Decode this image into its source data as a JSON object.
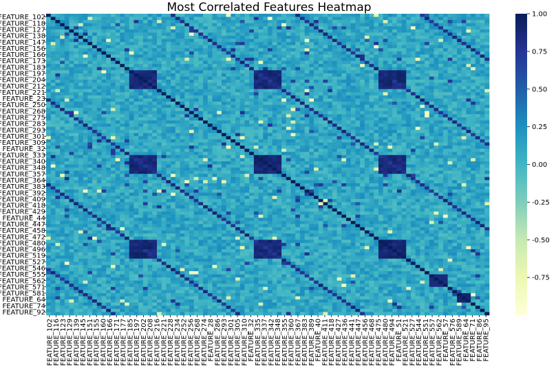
{
  "chart_data": {
    "type": "heatmap",
    "title": "Most Correlated Features Heatmap",
    "xlabel": "",
    "ylabel": "",
    "colormap": "YlGnBu",
    "colorbar": {
      "range": [
        -1.0,
        1.0
      ],
      "ticks": [
        "1.00",
        "0.75",
        "0.50",
        "0.25",
        "0.00",
        "-0.25",
        "-0.50",
        "-0.75"
      ],
      "tick_values": [
        1.0,
        0.75,
        0.5,
        0.25,
        0.0,
        -0.25,
        -0.5,
        -0.75
      ]
    },
    "row_labels": [
      "FEATURE_102",
      "FEATURE_118",
      "FEATURE_127",
      "FEATURE_138",
      "FEATURE_147",
      "FEATURE_156",
      "FEATURE_166",
      "FEATURE_173",
      "FEATURE_183",
      "FEATURE_197",
      "FEATURE_204",
      "FEATURE_212",
      "FEATURE_221",
      "FEATURE_23",
      "FEATURE_250",
      "FEATURE_268",
      "FEATURE_275",
      "FEATURE_283",
      "FEATURE_293",
      "FEATURE_301",
      "FEATURE_309",
      "FEATURE_32",
      "FEATURE_333",
      "FEATURE_340",
      "FEATURE_348",
      "FEATURE_357",
      "FEATURE_364",
      "FEATURE_383",
      "FEATURE_392",
      "FEATURE_409",
      "FEATURE_418",
      "FEATURE_429",
      "FEATURE_44",
      "FEATURE_447",
      "FEATURE_458",
      "FEATURE_472",
      "FEATURE_480",
      "FEATURE_496",
      "FEATURE_519",
      "FEATURE_527",
      "FEATURE_546",
      "FEATURE_555",
      "FEATURE_562",
      "FEATURE_571",
      "FEATURE_581",
      "FEATURE_64",
      "FEATURE_74",
      "FEATURE_92"
    ],
    "column_labels": [
      "FEATURE_102",
      "FEATURE_116",
      "FEATURE_123",
      "FEATURE_129",
      "FEATURE_139",
      "FEATURE_145",
      "FEATURE_151",
      "FEATURE_155",
      "FEATURE_160",
      "FEATURE_166",
      "FEATURE_171",
      "FEATURE_177",
      "FEATURE_185",
      "FEATURE_197",
      "FEATURE_202",
      "FEATURE_208",
      "FEATURE_216",
      "FEATURE_221",
      "FEATURE_228",
      "FEATURE_234",
      "FEATURE_252",
      "FEATURE_256",
      "FEATURE_268",
      "FEATURE_274",
      "FEATURE_28",
      "FEATURE_286",
      "FEATURE_293",
      "FEATURE_301",
      "FEATURE_305",
      "FEATURE_310",
      "FEATURE_32",
      "FEATURE_335",
      "FEATURE_337",
      "FEATURE_342",
      "FEATURE_348",
      "FEATURE_355",
      "FEATURE_360",
      "FEATURE_367",
      "FEATURE_383",
      "FEATURE_389",
      "FEATURE_40",
      "FEATURE_411",
      "FEATURE_418",
      "FEATURE_427",
      "FEATURE_436",
      "FEATURE_441",
      "FEATURE_447",
      "FEATURE_456",
      "FEATURE_468",
      "FEATURE_475",
      "FEATURE_480",
      "FEATURE_494",
      "FEATURE_51",
      "FEATURE_521",
      "FEATURE_527",
      "FEATURE_544",
      "FEATURE_551",
      "FEATURE_557",
      "FEATURE_562",
      "FEATURE_57",
      "FEATURE_576",
      "FEATURE_589",
      "FEATURE_64",
      "FEATURE_71",
      "FEATURE_86",
      "FEATURE_95"
    ],
    "diagonal_value": 1.0,
    "background_value": 0.1
  }
}
